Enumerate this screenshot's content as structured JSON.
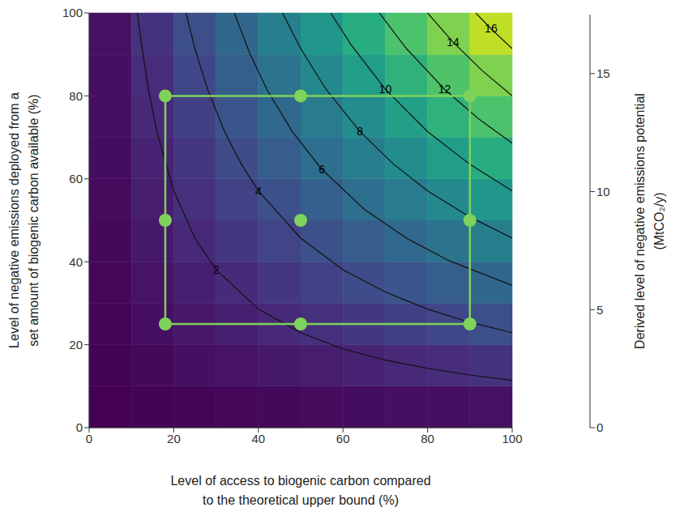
{
  "chart_data": {
    "type": "contour",
    "x_label": [
      "Level of access to biogenic carbon compared",
      "to the theoretical upper bound (%)"
    ],
    "y_label": [
      "Level of negative emissions deployed from a",
      "set amount of biogenic carbon available (%)"
    ],
    "xlim": [
      0,
      100
    ],
    "ylim": [
      0,
      100
    ],
    "xticks": [
      0,
      20,
      40,
      60,
      80,
      100
    ],
    "yticks": [
      0,
      20,
      40,
      60,
      80,
      100
    ],
    "heatmap": {
      "x_edges": [
        0,
        10,
        20,
        30,
        40,
        50,
        60,
        70,
        80,
        90,
        100
      ],
      "y_edges": [
        0,
        10,
        20,
        30,
        40,
        50,
        60,
        70,
        80,
        90,
        100
      ],
      "values": [
        [
          0.0,
          0.1,
          0.2,
          0.3,
          0.4,
          0.5,
          0.6,
          0.7,
          0.7,
          0.8
        ],
        [
          0.1,
          0.4,
          0.7,
          0.9,
          1.2,
          1.4,
          1.7,
          2.0,
          2.2,
          2.5
        ],
        [
          0.2,
          0.7,
          1.1,
          1.5,
          2.0,
          2.4,
          2.8,
          3.3,
          3.7,
          4.2
        ],
        [
          0.3,
          0.9,
          1.5,
          2.1,
          2.8,
          3.4,
          4.0,
          4.6,
          5.2,
          5.8
        ],
        [
          0.4,
          1.2,
          2.0,
          2.8,
          3.5,
          4.3,
          5.1,
          5.9,
          6.7,
          7.5
        ],
        [
          0.5,
          1.4,
          2.4,
          3.4,
          4.3,
          5.3,
          6.3,
          7.2,
          8.2,
          9.1
        ],
        [
          0.6,
          1.7,
          2.8,
          4.0,
          5.1,
          6.3,
          7.4,
          8.5,
          9.7,
          10.8
        ],
        [
          0.7,
          2.0,
          3.3,
          4.6,
          5.9,
          7.2,
          8.5,
          9.8,
          11.2,
          12.5
        ],
        [
          0.7,
          2.2,
          3.7,
          5.2,
          6.7,
          8.2,
          9.7,
          11.2,
          12.6,
          14.1
        ],
        [
          0.8,
          2.5,
          4.2,
          5.8,
          7.5,
          9.1,
          10.8,
          12.5,
          14.1,
          15.8
        ]
      ]
    },
    "colorbar": {
      "label": [
        "Derived level of negative emissions potential",
        "(MtCO₂/y)"
      ],
      "lim": [
        0,
        17.5
      ],
      "ticks": [
        0,
        5,
        10,
        15
      ]
    },
    "contours": [
      {
        "level": 2,
        "x": [
          11.4,
          12,
          14,
          16,
          20,
          25,
          30,
          40,
          50,
          60,
          70,
          80,
          90,
          100
        ],
        "y": [
          100,
          95.2,
          81.6,
          71.4,
          57.1,
          45.7,
          38.1,
          28.6,
          22.9,
          19.0,
          16.3,
          14.3,
          12.7,
          11.4
        ]
      },
      {
        "level": 4,
        "x": [
          22.9,
          25,
          28,
          32,
          36,
          40,
          50,
          60,
          70,
          80,
          90,
          100
        ],
        "y": [
          100,
          91.4,
          81.6,
          71.4,
          63.5,
          57.1,
          45.7,
          38.1,
          32.7,
          28.6,
          25.4,
          22.9
        ]
      },
      {
        "level": 6,
        "x": [
          34.3,
          38,
          42,
          48,
          55,
          65,
          75,
          85,
          100
        ],
        "y": [
          100,
          90.2,
          81.6,
          71.4,
          62.3,
          52.7,
          45.7,
          40.3,
          34.3
        ]
      },
      {
        "level": 8,
        "x": [
          45.7,
          50,
          56,
          64,
          72,
          80,
          90,
          100
        ],
        "y": [
          100,
          91.4,
          81.6,
          71.4,
          63.5,
          57.1,
          50.8,
          45.7
        ]
      },
      {
        "level": 10,
        "x": [
          57.1,
          62,
          70,
          80,
          90,
          100
        ],
        "y": [
          100,
          92.2,
          81.6,
          71.4,
          63.5,
          57.1
        ]
      },
      {
        "level": 12,
        "x": [
          68.6,
          75,
          84,
          92,
          100
        ],
        "y": [
          100,
          91.4,
          81.6,
          74.5,
          68.6
        ]
      },
      {
        "level": 14,
        "x": [
          80,
          86,
          93,
          100
        ],
        "y": [
          100,
          93.0,
          86.0,
          80
        ]
      },
      {
        "level": 16,
        "x": [
          91.4,
          95,
          100
        ],
        "y": [
          100,
          96.2,
          91.4
        ]
      }
    ],
    "points": {
      "color": "#7ed35a",
      "x": [
        18,
        50,
        90,
        18,
        50,
        90,
        18,
        50,
        90
      ],
      "y": [
        80,
        80,
        80,
        50,
        50,
        50,
        25,
        25,
        25
      ]
    }
  }
}
